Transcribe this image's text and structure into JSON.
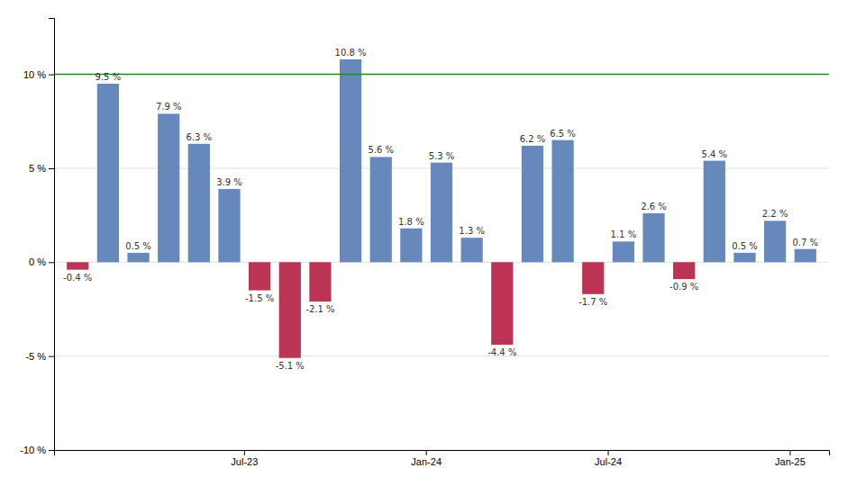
{
  "chart_data": {
    "type": "bar",
    "categories": [
      null,
      null,
      null,
      null,
      null,
      null,
      "Jul-23",
      null,
      null,
      null,
      null,
      null,
      "Jan-24",
      null,
      null,
      null,
      null,
      null,
      "Jul-24",
      null,
      null,
      null,
      null,
      null,
      "Jan-25"
    ],
    "values": [
      -0.4,
      9.5,
      0.5,
      7.9,
      6.3,
      3.9,
      -1.5,
      -5.1,
      -2.1,
      10.8,
      5.6,
      1.8,
      5.3,
      1.3,
      -4.4,
      6.2,
      6.5,
      -1.7,
      1.1,
      2.6,
      -0.9,
      5.4,
      0.5,
      2.2,
      0.7
    ],
    "value_labels": [
      "-0.4 %",
      "9.5 %",
      "0.5 %",
      "7.9 %",
      "6.3 %",
      "3.9 %",
      "-1.5 %",
      "-5.1 %",
      "-2.1 %",
      "10.8 %",
      "5.6 %",
      "1.8 %",
      "5.3 %",
      "1.3 %",
      "-4.4 %",
      "6.2 %",
      "6.5 %",
      "-1.7 %",
      "1.1 %",
      "2.6 %",
      "-0.9 %",
      "5.4 %",
      "0.5 %",
      "2.2 %",
      "0.7 %"
    ],
    "colors": [
      "#BB3355",
      "#6688BB",
      "#6688BB",
      "#6688BB",
      "#6688BB",
      "#6688BB",
      "#BB3355",
      "#BB3355",
      "#BB3355",
      "#6688BB",
      "#6688BB",
      "#6688BB",
      "#6688BB",
      "#6688BB",
      "#BB3355",
      "#6688BB",
      "#6688BB",
      "#BB3355",
      "#6688BB",
      "#6688BB",
      "#BB3355",
      "#6688BB",
      "#6688BB",
      "#6688BB",
      "#6688BB"
    ],
    "data_labels": true,
    "hline": {
      "value": 10,
      "color": "#228822"
    },
    "ylim": [
      -10,
      13
    ],
    "yticks": [
      {
        "value": -10,
        "label": "-10 %"
      },
      {
        "value": -5,
        "label": "-5 %"
      },
      {
        "value": 0,
        "label": "0 %"
      },
      {
        "value": 5,
        "label": "5 %"
      },
      {
        "value": 10,
        "label": "10 %"
      }
    ],
    "grid": true
  }
}
